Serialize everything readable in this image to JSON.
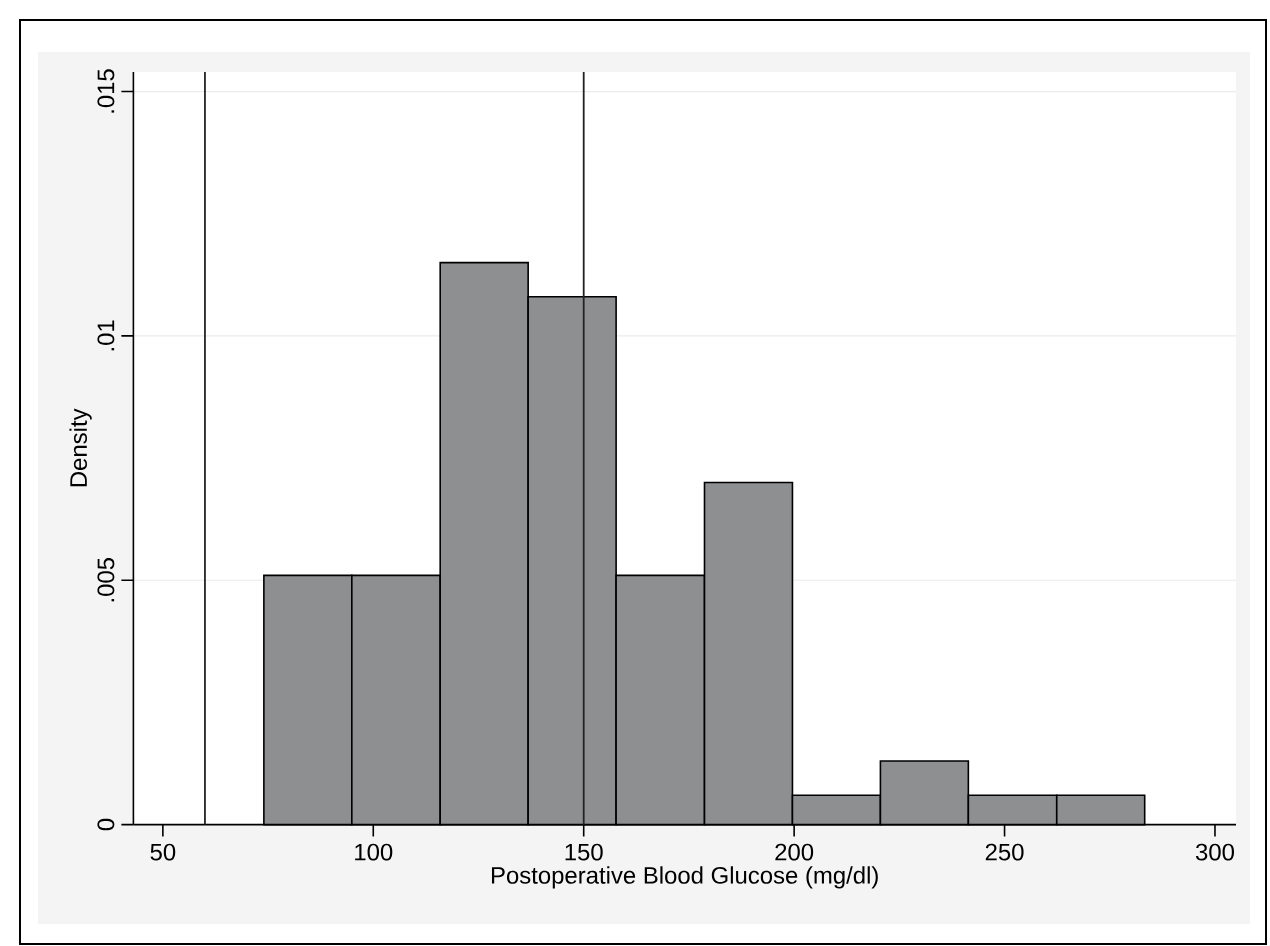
{
  "chart_data": {
    "type": "histogram",
    "xlabel": "Postoperative Blood Glucose (mg/dl)",
    "ylabel": "Density",
    "bins": [
      74,
      94.9,
      115.9,
      136.8,
      157.7,
      178.7,
      199.6,
      220.5,
      241.4,
      262.4,
      283.3
    ],
    "values": [
      0.0051,
      0.0051,
      0.0115,
      0.0108,
      0.0051,
      0.007,
      0.0006,
      0.0013,
      0.0006,
      0.0006
    ],
    "color": "#8e8f91",
    "xlim": [
      43,
      305
    ],
    "xticks": [
      50,
      100,
      150,
      200,
      250,
      300
    ],
    "ylim": [
      0,
      0.0154
    ],
    "yticks": [
      {
        "value": 0,
        "label": "0"
      },
      {
        "value": 0.005,
        "label": ".005"
      },
      {
        "value": 0.01,
        "label": ".01"
      },
      {
        "value": 0.015,
        "label": ".015"
      }
    ],
    "grid": "y",
    "ref_lines": [
      {
        "axis": "x",
        "value": 60,
        "color": "#222222"
      },
      {
        "axis": "x",
        "value": 150,
        "color": "#222222"
      }
    ]
  }
}
